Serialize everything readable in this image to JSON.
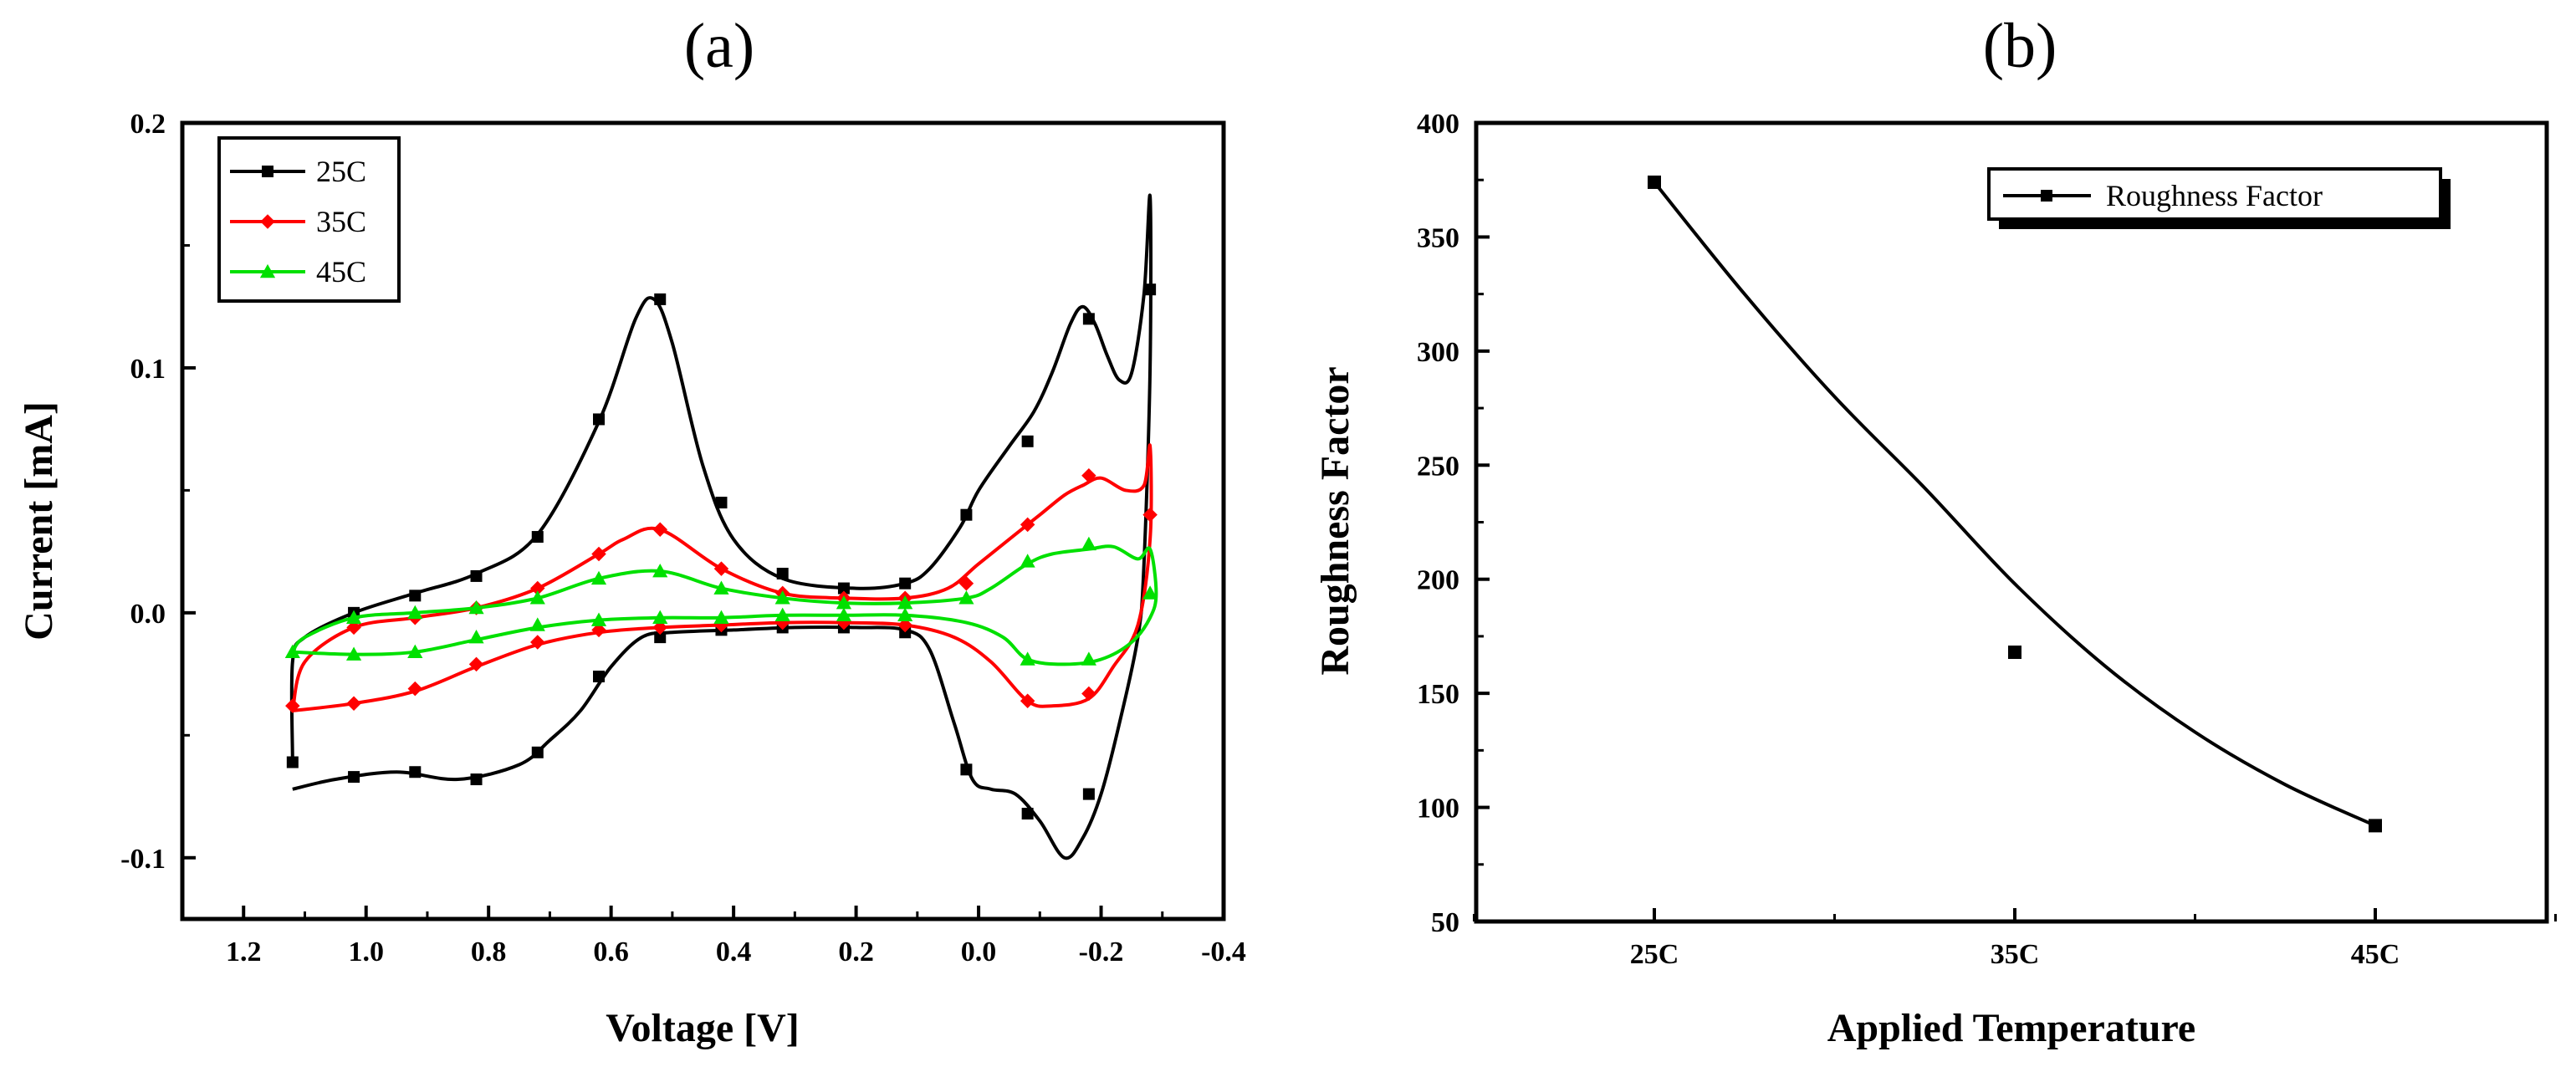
{
  "chart_data": [
    {
      "panel": "(a)",
      "type": "line",
      "xlabel": "Voltage [V]",
      "ylabel": "Current [mA]",
      "xlim": [
        1.3,
        -0.4
      ],
      "ylim": [
        -0.125,
        0.2
      ],
      "x_ticks": [
        1.2,
        1.0,
        0.8,
        0.6,
        0.4,
        0.2,
        0.0,
        -0.2,
        -0.4
      ],
      "x_tick_labels": [
        "1.2",
        "1.0",
        "0.8",
        "0.6",
        "0.4",
        "0.2",
        "0.0",
        "-0.2",
        "-0.4"
      ],
      "y_ticks": [
        -0.1,
        0.0,
        0.1,
        0.2
      ],
      "y_tick_labels": [
        "-0.1",
        "0.0",
        "0.1",
        "0.2"
      ],
      "legend_position": "top-left",
      "series": [
        {
          "name": "25C",
          "color": "#000000",
          "marker": "square",
          "curve": [
            [
              1.12,
              -0.072
            ],
            [
              1.05,
              -0.068
            ],
            [
              0.95,
              -0.065
            ],
            [
              0.85,
              -0.068
            ],
            [
              0.75,
              -0.062
            ],
            [
              0.7,
              -0.052
            ],
            [
              0.65,
              -0.04
            ],
            [
              0.6,
              -0.022
            ],
            [
              0.55,
              -0.01
            ],
            [
              0.5,
              -0.008
            ],
            [
              0.4,
              -0.007
            ],
            [
              0.3,
              -0.006
            ],
            [
              0.2,
              -0.006
            ],
            [
              0.12,
              -0.007
            ],
            [
              0.08,
              -0.015
            ],
            [
              0.04,
              -0.045
            ],
            [
              0.01,
              -0.068
            ],
            [
              -0.02,
              -0.072
            ],
            [
              -0.06,
              -0.074
            ],
            [
              -0.1,
              -0.085
            ],
            [
              -0.14,
              -0.1
            ],
            [
              -0.17,
              -0.092
            ],
            [
              -0.2,
              -0.074
            ],
            [
              -0.23,
              -0.045
            ],
            [
              -0.26,
              -0.01
            ],
            [
              -0.27,
              0.02
            ],
            [
              -0.28,
              0.1
            ],
            [
              -0.28,
              0.17
            ],
            [
              -0.27,
              0.13
            ],
            [
              -0.25,
              0.098
            ],
            [
              -0.23,
              0.095
            ],
            [
              -0.21,
              0.105
            ],
            [
              -0.19,
              0.118
            ],
            [
              -0.17,
              0.125
            ],
            [
              -0.15,
              0.118
            ],
            [
              -0.12,
              0.098
            ],
            [
              -0.09,
              0.082
            ],
            [
              -0.05,
              0.068
            ],
            [
              0.0,
              0.05
            ],
            [
              0.03,
              0.035
            ],
            [
              0.08,
              0.018
            ],
            [
              0.12,
              0.012
            ],
            [
              0.2,
              0.01
            ],
            [
              0.32,
              0.014
            ],
            [
              0.4,
              0.03
            ],
            [
              0.45,
              0.06
            ],
            [
              0.5,
              0.11
            ],
            [
              0.53,
              0.128
            ],
            [
              0.56,
              0.12
            ],
            [
              0.62,
              0.078
            ],
            [
              0.72,
              0.032
            ],
            [
              0.82,
              0.016
            ],
            [
              0.92,
              0.008
            ],
            [
              1.02,
              0.0
            ],
            [
              1.1,
              -0.01
            ],
            [
              1.12,
              -0.02
            ],
            [
              1.12,
              -0.06
            ]
          ],
          "markers": [
            [
              1.12,
              -0.061
            ],
            [
              1.02,
              -0.067
            ],
            [
              0.92,
              -0.065
            ],
            [
              0.82,
              -0.068
            ],
            [
              0.72,
              -0.057
            ],
            [
              0.62,
              -0.026
            ],
            [
              0.52,
              -0.01
            ],
            [
              0.42,
              -0.007
            ],
            [
              0.32,
              -0.006
            ],
            [
              0.22,
              -0.006
            ],
            [
              0.12,
              -0.008
            ],
            [
              0.02,
              -0.064
            ],
            [
              -0.08,
              -0.082
            ],
            [
              -0.18,
              -0.074
            ],
            [
              -0.28,
              0.132
            ],
            [
              -0.18,
              0.12
            ],
            [
              -0.08,
              0.07
            ],
            [
              0.02,
              0.04
            ],
            [
              0.12,
              0.012
            ],
            [
              0.22,
              0.01
            ],
            [
              0.32,
              0.016
            ],
            [
              0.42,
              0.045
            ],
            [
              0.52,
              0.128
            ],
            [
              0.62,
              0.079
            ],
            [
              0.72,
              0.031
            ],
            [
              0.82,
              0.015
            ],
            [
              0.92,
              0.007
            ],
            [
              1.02,
              0.0
            ]
          ]
        },
        {
          "name": "35C",
          "color": "#ff0000",
          "marker": "diamond",
          "curve": [
            [
              1.12,
              -0.04
            ],
            [
              1.02,
              -0.037
            ],
            [
              0.92,
              -0.032
            ],
            [
              0.82,
              -0.022
            ],
            [
              0.72,
              -0.013
            ],
            [
              0.62,
              -0.008
            ],
            [
              0.52,
              -0.006
            ],
            [
              0.42,
              -0.005
            ],
            [
              0.32,
              -0.004
            ],
            [
              0.22,
              -0.004
            ],
            [
              0.12,
              -0.005
            ],
            [
              0.04,
              -0.01
            ],
            [
              -0.02,
              -0.02
            ],
            [
              -0.08,
              -0.036
            ],
            [
              -0.12,
              -0.038
            ],
            [
              -0.18,
              -0.035
            ],
            [
              -0.22,
              -0.022
            ],
            [
              -0.26,
              -0.005
            ],
            [
              -0.28,
              0.03
            ],
            [
              -0.28,
              0.068
            ],
            [
              -0.27,
              0.052
            ],
            [
              -0.24,
              0.05
            ],
            [
              -0.2,
              0.055
            ],
            [
              -0.17,
              0.052
            ],
            [
              -0.14,
              0.048
            ],
            [
              -0.1,
              0.04
            ],
            [
              -0.06,
              0.032
            ],
            [
              0.0,
              0.02
            ],
            [
              0.05,
              0.01
            ],
            [
              0.12,
              0.006
            ],
            [
              0.22,
              0.006
            ],
            [
              0.32,
              0.008
            ],
            [
              0.42,
              0.018
            ],
            [
              0.52,
              0.034
            ],
            [
              0.58,
              0.03
            ],
            [
              0.62,
              0.024
            ],
            [
              0.72,
              0.01
            ],
            [
              0.82,
              0.002
            ],
            [
              0.92,
              -0.002
            ],
            [
              1.02,
              -0.006
            ],
            [
              1.1,
              -0.02
            ],
            [
              1.12,
              -0.04
            ]
          ],
          "markers": [
            [
              1.12,
              -0.038
            ],
            [
              1.02,
              -0.037
            ],
            [
              0.92,
              -0.031
            ],
            [
              0.82,
              -0.021
            ],
            [
              0.72,
              -0.012
            ],
            [
              0.62,
              -0.007
            ],
            [
              0.52,
              -0.006
            ],
            [
              0.42,
              -0.005
            ],
            [
              0.32,
              -0.004
            ],
            [
              0.22,
              -0.004
            ],
            [
              0.12,
              -0.005
            ],
            [
              -0.08,
              -0.036
            ],
            [
              -0.18,
              -0.033
            ],
            [
              -0.28,
              0.04
            ],
            [
              -0.18,
              0.056
            ],
            [
              -0.08,
              0.036
            ],
            [
              0.02,
              0.012
            ],
            [
              0.12,
              0.006
            ],
            [
              0.22,
              0.006
            ],
            [
              0.32,
              0.008
            ],
            [
              0.42,
              0.018
            ],
            [
              0.52,
              0.034
            ],
            [
              0.62,
              0.024
            ],
            [
              0.72,
              0.01
            ],
            [
              0.82,
              0.002
            ],
            [
              0.92,
              -0.002
            ],
            [
              1.02,
              -0.006
            ]
          ]
        },
        {
          "name": "45C",
          "color": "#00e000",
          "marker": "triangle",
          "curve": [
            [
              1.12,
              -0.016
            ],
            [
              1.02,
              -0.017
            ],
            [
              0.92,
              -0.016
            ],
            [
              0.82,
              -0.011
            ],
            [
              0.72,
              -0.006
            ],
            [
              0.62,
              -0.003
            ],
            [
              0.52,
              -0.002
            ],
            [
              0.42,
              -0.002
            ],
            [
              0.32,
              -0.001
            ],
            [
              0.22,
              -0.001
            ],
            [
              0.12,
              -0.001
            ],
            [
              0.02,
              -0.004
            ],
            [
              -0.04,
              -0.01
            ],
            [
              -0.08,
              -0.019
            ],
            [
              -0.14,
              -0.021
            ],
            [
              -0.2,
              -0.019
            ],
            [
              -0.25,
              -0.012
            ],
            [
              -0.28,
              -0.002
            ],
            [
              -0.29,
              0.008
            ],
            [
              -0.28,
              0.026
            ],
            [
              -0.26,
              0.022
            ],
            [
              -0.22,
              0.027
            ],
            [
              -0.18,
              0.026
            ],
            [
              -0.12,
              0.024
            ],
            [
              -0.08,
              0.02
            ],
            [
              -0.02,
              0.01
            ],
            [
              0.02,
              0.006
            ],
            [
              0.12,
              0.004
            ],
            [
              0.22,
              0.004
            ],
            [
              0.32,
              0.006
            ],
            [
              0.42,
              0.01
            ],
            [
              0.52,
              0.017
            ],
            [
              0.62,
              0.014
            ],
            [
              0.72,
              0.006
            ],
            [
              0.82,
              0.002
            ],
            [
              0.92,
              0.0
            ],
            [
              1.02,
              -0.002
            ],
            [
              1.1,
              -0.01
            ],
            [
              1.12,
              -0.016
            ]
          ],
          "markers": [
            [
              1.12,
              -0.016
            ],
            [
              1.02,
              -0.017
            ],
            [
              0.92,
              -0.016
            ],
            [
              0.82,
              -0.01
            ],
            [
              0.72,
              -0.005
            ],
            [
              0.62,
              -0.003
            ],
            [
              0.52,
              -0.002
            ],
            [
              0.42,
              -0.002
            ],
            [
              0.32,
              -0.001
            ],
            [
              0.22,
              -0.001
            ],
            [
              0.12,
              -0.001
            ],
            [
              -0.08,
              -0.019
            ],
            [
              -0.18,
              -0.019
            ],
            [
              -0.28,
              0.008
            ],
            [
              -0.18,
              0.028
            ],
            [
              -0.08,
              0.021
            ],
            [
              0.02,
              0.006
            ],
            [
              0.12,
              0.004
            ],
            [
              0.22,
              0.004
            ],
            [
              0.32,
              0.006
            ],
            [
              0.42,
              0.01
            ],
            [
              0.52,
              0.017
            ],
            [
              0.62,
              0.014
            ],
            [
              0.72,
              0.006
            ],
            [
              0.82,
              0.002
            ],
            [
              0.92,
              0.0
            ],
            [
              1.02,
              -0.002
            ]
          ]
        }
      ]
    },
    {
      "panel": "(b)",
      "type": "scatter",
      "xlabel": "Applied Temperature",
      "ylabel": "Roughness Factor",
      "categories": [
        "25C",
        "35C",
        "45C"
      ],
      "ylim": [
        50,
        400
      ],
      "y_ticks": [
        50,
        100,
        150,
        200,
        250,
        300,
        350,
        400
      ],
      "y_tick_labels": [
        "50",
        "100",
        "150",
        "200",
        "250",
        "300",
        "350",
        "400"
      ],
      "legend_position": "top-right",
      "series": [
        {
          "name": "Roughness Factor",
          "color": "#000000",
          "marker": "square",
          "values": [
            374,
            168,
            92
          ],
          "fit_curve": [
            [
              0,
              374
            ],
            [
              0.25,
              325
            ],
            [
              0.5,
              280
            ],
            [
              0.75,
              240
            ],
            [
              1,
              198
            ],
            [
              1.25,
              162
            ],
            [
              1.5,
              133
            ],
            [
              1.75,
              110
            ],
            [
              2,
              92
            ]
          ]
        }
      ]
    }
  ]
}
